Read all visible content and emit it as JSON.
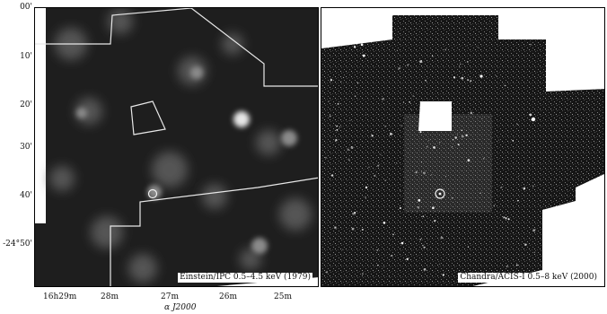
{
  "y_axis_labels": [
    "00'",
    "10'",
    "20'",
    "30'",
    "40'",
    "-24°50'"
  ],
  "x_axis_labels": [
    "16h29m",
    "28m",
    "27m",
    "26m",
    "25m"
  ],
  "x_axis_title": "α J2000",
  "left_panel": {
    "caption": "Einstein/IPC 0.5–4.5 keV (1979)"
  },
  "right_panel": {
    "caption": "Chandra/ACIS-I 0.5–8 keV (2000)"
  },
  "colors": {
    "background": "#ffffff",
    "image_dark": "#1a1a1a",
    "outline": "#e8e8e8"
  }
}
